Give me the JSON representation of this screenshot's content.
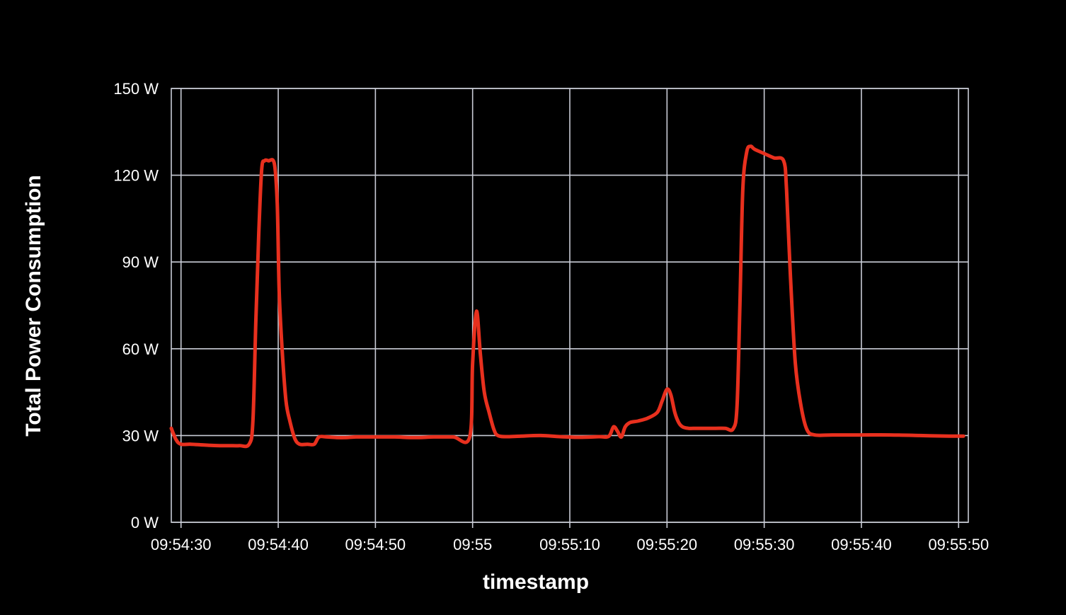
{
  "chart_data": {
    "type": "line",
    "title": "",
    "xlabel": "timestamp",
    "ylabel": "Total Power Consumption",
    "x_unit": "seconds (clock time)",
    "xlim": [
      "09:54:29",
      "09:55:51"
    ],
    "ylim": [
      0,
      150
    ],
    "grid": true,
    "legend": "none",
    "y_ticks": [
      {
        "value": 0,
        "label": "0 W"
      },
      {
        "value": 30,
        "label": "30 W"
      },
      {
        "value": 60,
        "label": "60 W"
      },
      {
        "value": 90,
        "label": "90 W"
      },
      {
        "value": 120,
        "label": "120 W"
      },
      {
        "value": 150,
        "label": "150 W"
      }
    ],
    "x_ticks": [
      {
        "value": "09:54:30",
        "label": "09:54:30"
      },
      {
        "value": "09:54:40",
        "label": "09:54:40"
      },
      {
        "value": "09:54:50",
        "label": "09:54:50"
      },
      {
        "value": "09:55:00",
        "label": "09:55"
      },
      {
        "value": "09:55:10",
        "label": "09:55:10"
      },
      {
        "value": "09:55:20",
        "label": "09:55:20"
      },
      {
        "value": "09:55:30",
        "label": "09:55:30"
      },
      {
        "value": "09:55:40",
        "label": "09:55:40"
      },
      {
        "value": "09:55:50",
        "label": "09:55:50"
      }
    ],
    "series": [
      {
        "color": "#e8301e",
        "x": [
          "09:54:29.0",
          "09:54:29.5",
          "09:54:30.0",
          "09:54:31.0",
          "09:54:32.0",
          "09:54:33.0",
          "09:54:34.0",
          "09:54:35.0",
          "09:54:36.0",
          "09:54:37.0",
          "09:54:37.4",
          "09:54:37.7",
          "09:54:38.0",
          "09:54:38.3",
          "09:54:38.6",
          "09:54:39.0",
          "09:54:39.6",
          "09:54:39.9",
          "09:54:40.1",
          "09:54:40.4",
          "09:54:40.8",
          "09:54:41.2",
          "09:54:41.7",
          "09:54:42.2",
          "09:54:43.0",
          "09:54:43.7",
          "09:54:44.2",
          "09:54:45.0",
          "09:54:46.0",
          "09:54:47.0",
          "09:54:48.0",
          "09:54:50.0",
          "09:54:52.0",
          "09:54:54.0",
          "09:54:56.0",
          "09:54:58.0",
          "09:54:59.7",
          "09:55:00.0",
          "09:55:00.4",
          "09:55:00.8",
          "09:55:01.2",
          "09:55:01.7",
          "09:55:02.2",
          "09:55:02.6",
          "09:55:03.5",
          "09:55:05.0",
          "09:55:07.0",
          "09:55:09.0",
          "09:55:11.0",
          "09:55:13.0",
          "09:55:14.0",
          "09:55:14.5",
          "09:55:14.9",
          "09:55:15.3",
          "09:55:15.7",
          "09:55:16.2",
          "09:55:17.0",
          "09:55:18.0",
          "09:55:19.0",
          "09:55:19.5",
          "09:55:20.0",
          "09:55:20.4",
          "09:55:20.8",
          "09:55:21.2",
          "09:55:21.6",
          "09:55:22.2",
          "09:55:23.0",
          "09:55:24.0",
          "09:55:25.0",
          "09:55:26.0",
          "09:55:26.8",
          "09:55:27.2",
          "09:55:27.5",
          "09:55:27.8",
          "09:55:28.2",
          "09:55:28.6",
          "09:55:29.0",
          "09:55:30.0",
          "09:55:31.0",
          "09:55:32.0",
          "09:55:32.3",
          "09:55:32.7",
          "09:55:33.2",
          "09:55:33.8",
          "09:55:34.4",
          "09:55:35.2",
          "09:55:37.0",
          "09:55:40.0",
          "09:55:43.0",
          "09:55:46.0",
          "09:55:49.0",
          "09:55:50.5"
        ],
        "y": [
          32.5,
          28.5,
          27,
          27,
          26.8,
          26.6,
          26.5,
          26.5,
          26.5,
          27,
          35,
          70,
          100,
          122,
          125,
          125,
          124,
          110,
          80,
          60,
          42,
          35,
          29,
          27,
          27,
          27,
          29.5,
          29.5,
          29.3,
          29.3,
          29.5,
          29.5,
          29.5,
          29.3,
          29.5,
          29.5,
          29.5,
          55,
          73,
          58,
          45,
          38,
          32,
          30,
          29.6,
          29.8,
          30,
          29.6,
          29.4,
          29.6,
          29.7,
          33,
          31.5,
          29.5,
          33,
          34.5,
          35,
          36,
          38,
          42,
          46,
          44,
          38,
          34.5,
          33,
          32.5,
          32.5,
          32.5,
          32.5,
          32.5,
          32.3,
          40,
          75,
          115,
          128,
          130,
          129,
          127.5,
          126,
          125,
          115,
          85,
          55,
          40,
          32,
          30.2,
          30.2,
          30.2,
          30.2,
          30,
          29.8,
          29.8
        ]
      }
    ]
  }
}
